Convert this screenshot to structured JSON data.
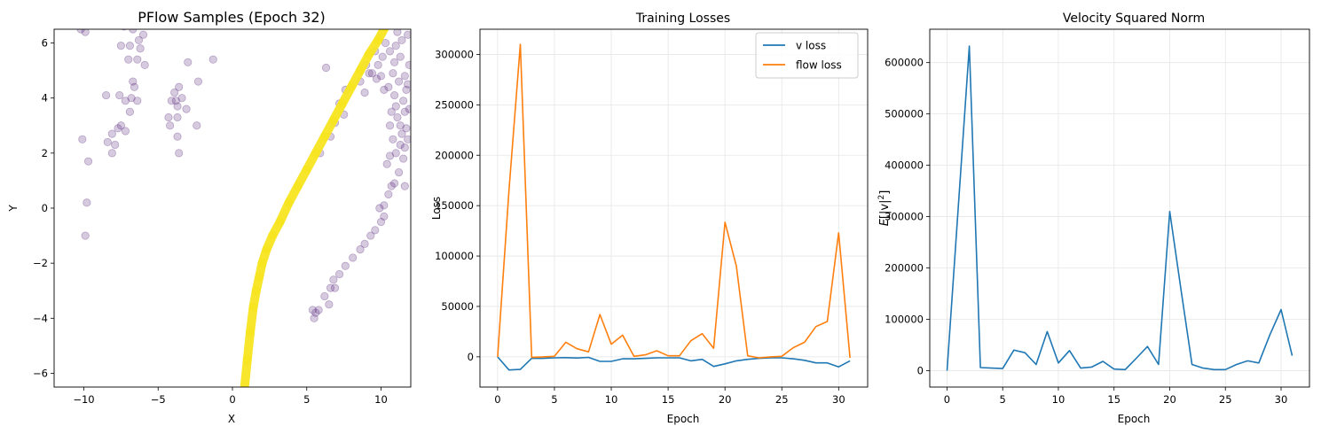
{
  "colors": {
    "scatter_purple": "#5b2a7e",
    "path_yellow": "#f7e521",
    "v_loss": "#1f77b4",
    "flow_loss": "#ff7f0e",
    "grid": "#e6e6e6"
  },
  "chart_data": [
    {
      "type": "scatter",
      "title": "PFlow Samples (Epoch 32)",
      "xlabel": "X",
      "ylabel": "Y",
      "xlim": [
        -12,
        12
      ],
      "ylim": [
        -6.5,
        6.5
      ],
      "xticks": [
        -10,
        -5,
        0,
        5,
        10
      ],
      "yticks": [
        -6,
        -4,
        -2,
        0,
        2,
        4,
        6
      ],
      "grid": false,
      "series": [
        {
          "role": "scattered-samples",
          "points": [
            [
              -10.2,
              6.5
            ],
            [
              -9.9,
              6.4
            ],
            [
              -7.3,
              6.6
            ],
            [
              -6.7,
              6.5
            ],
            [
              -6.0,
              6.3
            ],
            [
              -6.3,
              6.1
            ],
            [
              -6.2,
              5.8
            ],
            [
              -7.5,
              5.9
            ],
            [
              -6.9,
              5.9
            ],
            [
              -7.0,
              5.4
            ],
            [
              -6.4,
              5.4
            ],
            [
              -5.9,
              5.2
            ],
            [
              -1.3,
              5.4
            ],
            [
              -3.0,
              5.3
            ],
            [
              -2.3,
              4.6
            ],
            [
              -6.7,
              4.6
            ],
            [
              -6.6,
              4.4
            ],
            [
              -3.6,
              4.4
            ],
            [
              -3.9,
              4.2
            ],
            [
              -8.5,
              4.1
            ],
            [
              -7.6,
              4.1
            ],
            [
              -3.4,
              4.0
            ],
            [
              -6.8,
              4.0
            ],
            [
              -3.8,
              3.9
            ],
            [
              -4.1,
              3.9
            ],
            [
              -6.4,
              3.9
            ],
            [
              -7.2,
              3.9
            ],
            [
              -3.7,
              3.7
            ],
            [
              -3.1,
              3.6
            ],
            [
              -6.9,
              3.5
            ],
            [
              -4.3,
              3.3
            ],
            [
              -3.7,
              3.3
            ],
            [
              -7.5,
              3.0
            ],
            [
              -2.4,
              3.0
            ],
            [
              -4.2,
              3.0
            ],
            [
              -7.7,
              2.9
            ],
            [
              -7.2,
              2.8
            ],
            [
              -8.1,
              2.7
            ],
            [
              -3.7,
              2.6
            ],
            [
              -10.1,
              2.5
            ],
            [
              -8.4,
              2.4
            ],
            [
              -7.9,
              2.3
            ],
            [
              -3.6,
              2.0
            ],
            [
              -8.1,
              2.0
            ],
            [
              -9.7,
              1.7
            ],
            [
              -9.8,
              0.2
            ],
            [
              -9.9,
              -1.0
            ],
            [
              6.3,
              5.1
            ],
            [
              7.6,
              4.3
            ],
            [
              7.2,
              3.8
            ],
            [
              7.5,
              3.4
            ],
            [
              6.9,
              3.1
            ],
            [
              6.6,
              2.6
            ],
            [
              5.9,
              2.0
            ],
            [
              5.4,
              -3.7
            ],
            [
              5.6,
              -3.8
            ],
            [
              5.5,
              -4.0
            ],
            [
              5.8,
              -3.7
            ],
            [
              6.5,
              -3.5
            ],
            [
              6.2,
              -3.2
            ],
            [
              6.6,
              -2.9
            ],
            [
              6.9,
              -2.9
            ],
            [
              6.8,
              -2.6
            ],
            [
              7.2,
              -2.4
            ],
            [
              7.6,
              -2.1
            ],
            [
              8.1,
              -1.8
            ],
            [
              8.6,
              -1.5
            ],
            [
              8.9,
              -1.3
            ],
            [
              9.3,
              -1.0
            ],
            [
              9.6,
              -0.8
            ],
            [
              10.0,
              -0.5
            ],
            [
              10.2,
              -0.3
            ],
            [
              9.9,
              0.0
            ],
            [
              10.2,
              0.1
            ],
            [
              10.5,
              0.5
            ],
            [
              10.7,
              0.8
            ],
            [
              10.9,
              0.9
            ],
            [
              11.2,
              1.3
            ],
            [
              11.6,
              0.8
            ],
            [
              10.4,
              1.6
            ],
            [
              10.6,
              1.9
            ],
            [
              11.0,
              2.0
            ],
            [
              11.3,
              2.3
            ],
            [
              11.6,
              2.2
            ],
            [
              10.8,
              2.5
            ],
            [
              11.4,
              2.7
            ],
            [
              11.7,
              2.9
            ],
            [
              10.6,
              3.0
            ],
            [
              11.1,
              3.3
            ],
            [
              11.6,
              3.5
            ],
            [
              11.0,
              3.7
            ],
            [
              11.5,
              3.9
            ],
            [
              10.9,
              4.1
            ],
            [
              11.7,
              4.3
            ],
            [
              10.5,
              4.4
            ],
            [
              11.2,
              4.6
            ],
            [
              11.6,
              4.8
            ],
            [
              10.8,
              4.9
            ],
            [
              9.4,
              4.9
            ],
            [
              9.8,
              5.2
            ],
            [
              10.1,
              5.5
            ],
            [
              10.6,
              5.7
            ],
            [
              11.0,
              5.9
            ],
            [
              11.4,
              6.1
            ],
            [
              11.8,
              6.3
            ],
            [
              9.0,
              5.2
            ],
            [
              9.6,
              5.7
            ],
            [
              10.3,
              6.0
            ],
            [
              11.1,
              6.4
            ],
            [
              8.6,
              4.6
            ],
            [
              9.2,
              4.9
            ],
            [
              8.9,
              4.2
            ],
            [
              10.0,
              4.8
            ],
            [
              11.9,
              5.2
            ],
            [
              11.3,
              5.5
            ],
            [
              10.9,
              5.3
            ],
            [
              9.7,
              4.7
            ],
            [
              10.2,
              4.3
            ],
            [
              11.8,
              4.5
            ],
            [
              11.3,
              3.0
            ],
            [
              11.9,
              3.6
            ],
            [
              10.7,
              3.5
            ],
            [
              11.5,
              1.8
            ],
            [
              11.8,
              2.5
            ]
          ]
        },
        {
          "role": "yellow-trajectory",
          "points": [
            [
              0.8,
              -6.6
            ],
            [
              1.0,
              -5.5
            ],
            [
              1.2,
              -4.5
            ],
            [
              1.4,
              -3.6
            ],
            [
              1.6,
              -3.0
            ],
            [
              1.8,
              -2.5
            ],
            [
              2.0,
              -2.0
            ],
            [
              2.3,
              -1.5
            ],
            [
              2.7,
              -1.0
            ],
            [
              3.2,
              -0.5
            ],
            [
              3.8,
              0.2
            ],
            [
              4.4,
              0.8
            ],
            [
              5.0,
              1.4
            ],
            [
              5.6,
              2.0
            ],
            [
              6.2,
              2.6
            ],
            [
              6.8,
              3.2
            ],
            [
              7.4,
              3.8
            ],
            [
              8.0,
              4.4
            ],
            [
              8.6,
              5.0
            ],
            [
              9.2,
              5.6
            ],
            [
              9.8,
              6.1
            ],
            [
              10.3,
              6.6
            ]
          ]
        }
      ]
    },
    {
      "type": "line",
      "title": "Training Losses",
      "xlabel": "Epoch",
      "ylabel": "Loss",
      "xlim": [
        -1.55,
        32.55
      ],
      "ylim": [
        -30000,
        325000
      ],
      "xticks": [
        0,
        5,
        10,
        15,
        20,
        25,
        30
      ],
      "yticks": [
        0,
        50000,
        100000,
        150000,
        200000,
        250000,
        300000
      ],
      "grid": true,
      "legend": "top-right",
      "x": [
        0,
        1,
        2,
        3,
        4,
        5,
        6,
        7,
        8,
        9,
        10,
        11,
        12,
        13,
        14,
        15,
        16,
        17,
        18,
        19,
        20,
        21,
        22,
        23,
        24,
        25,
        26,
        27,
        28,
        29,
        30,
        31
      ],
      "series": [
        {
          "name": "v loss",
          "values": [
            0,
            -13000,
            -12500,
            -1500,
            -1500,
            -1000,
            -800,
            -1200,
            -600,
            -4500,
            -4500,
            -2000,
            -2000,
            -1500,
            -1000,
            -1000,
            -1000,
            -4000,
            -2500,
            -9500,
            -7000,
            -4000,
            -2500,
            -1500,
            -1000,
            -1000,
            -2000,
            -3500,
            -6000,
            -6000,
            -10000,
            -4000
          ]
        },
        {
          "name": "flow loss",
          "values": [
            0,
            165000,
            310000,
            -500,
            0,
            500,
            14500,
            8000,
            5000,
            42000,
            12500,
            21500,
            500,
            2000,
            6000,
            1000,
            1000,
            16000,
            23000,
            8500,
            133500,
            90000,
            1000,
            -1000,
            0,
            500,
            9000,
            14500,
            30000,
            35000,
            123000,
            -1000
          ]
        }
      ]
    },
    {
      "type": "line",
      "title": "Velocity Squared Norm",
      "xlabel": "Epoch",
      "ylabel_parts": [
        "E",
        "[|v|",
        "2",
        "]"
      ],
      "xlim": [
        -1.55,
        32.55
      ],
      "ylim": [
        -32000,
        665000
      ],
      "xticks": [
        0,
        5,
        10,
        15,
        20,
        25,
        30
      ],
      "yticks": [
        0,
        100000,
        200000,
        300000,
        400000,
        500000,
        600000
      ],
      "grid": true,
      "x": [
        0,
        1,
        2,
        3,
        4,
        5,
        6,
        7,
        8,
        9,
        10,
        11,
        12,
        13,
        14,
        15,
        16,
        17,
        18,
        19,
        20,
        21,
        22,
        23,
        24,
        25,
        26,
        27,
        28,
        29,
        30,
        31
      ],
      "series": [
        {
          "values": [
            0,
            315000,
            632000,
            6000,
            5000,
            4000,
            40000,
            35000,
            12000,
            76000,
            15000,
            39000,
            5000,
            7000,
            18000,
            3000,
            2000,
            24000,
            47000,
            12000,
            310000,
            160000,
            12000,
            5000,
            2000,
            2000,
            12000,
            19000,
            15000,
            70000,
            119000,
            29000
          ]
        }
      ]
    }
  ]
}
